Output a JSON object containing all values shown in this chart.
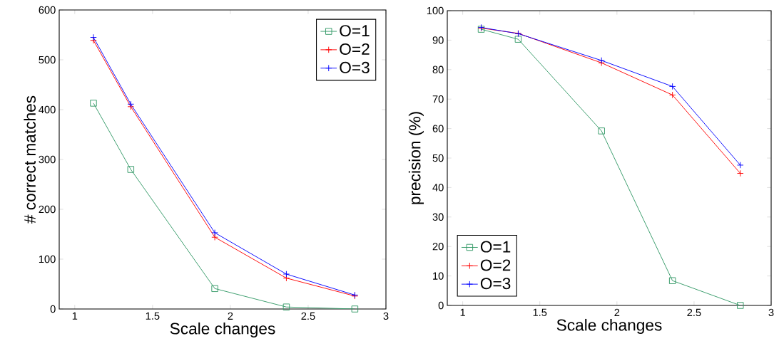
{
  "chart_data": [
    {
      "type": "line",
      "xlabel": "Scale changes",
      "ylabel": "# correct matches",
      "xlim": [
        0.9,
        3
      ],
      "ylim": [
        0,
        600
      ],
      "xticks": [
        1,
        1.5,
        2,
        2.5,
        3
      ],
      "yticks": [
        0,
        100,
        200,
        300,
        400,
        500,
        600
      ],
      "grid": false,
      "legend": "top right",
      "series": [
        {
          "name": "O=1",
          "color": "#339966",
          "marker": "square",
          "x": [
            1.12,
            1.36,
            1.9,
            2.36,
            2.8
          ],
          "values": [
            413,
            280,
            41,
            4,
            0
          ]
        },
        {
          "name": "O=2",
          "color": "#ff0000",
          "marker": "cross",
          "x": [
            1.12,
            1.36,
            1.9,
            2.36,
            2.8
          ],
          "values": [
            539,
            406,
            144,
            62,
            26
          ]
        },
        {
          "name": "O=3",
          "color": "#0000ff",
          "marker": "cross",
          "x": [
            1.12,
            1.36,
            1.9,
            2.36,
            2.8
          ],
          "values": [
            545,
            411,
            153,
            70,
            28
          ]
        }
      ]
    },
    {
      "type": "line",
      "xlabel": "Scale changes",
      "ylabel": "precision (%)",
      "xlim": [
        0.9,
        3
      ],
      "ylim": [
        0,
        100
      ],
      "xticks": [
        1,
        1.5,
        2,
        2.5,
        3
      ],
      "yticks": [
        0,
        10,
        20,
        30,
        40,
        50,
        60,
        70,
        80,
        90,
        100
      ],
      "grid": false,
      "legend": "bottom left",
      "series": [
        {
          "name": "O=1",
          "color": "#339966",
          "marker": "square",
          "x": [
            1.12,
            1.36,
            1.9,
            2.36,
            2.8
          ],
          "values": [
            93.7,
            90.3,
            59.2,
            8.4,
            0
          ]
        },
        {
          "name": "O=2",
          "color": "#ff0000",
          "marker": "cross",
          "x": [
            1.12,
            1.36,
            1.9,
            2.36,
            2.8
          ],
          "values": [
            94.1,
            92.3,
            82.3,
            71.4,
            44.8
          ]
        },
        {
          "name": "O=3",
          "color": "#0000ff",
          "marker": "cross",
          "x": [
            1.12,
            1.36,
            1.9,
            2.36,
            2.8
          ],
          "values": [
            94.3,
            92.2,
            83.1,
            74.3,
            47.6
          ]
        }
      ]
    }
  ]
}
